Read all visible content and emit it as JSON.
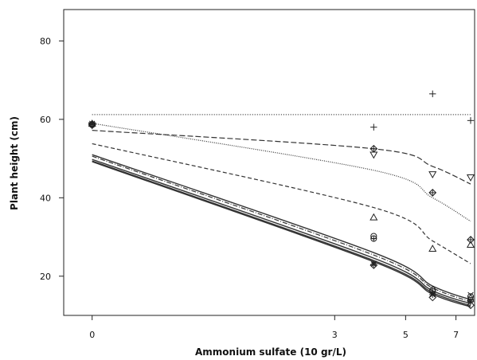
{
  "chart_data": {
    "type": "line",
    "xlabel": "Ammonium sulfate (10 gr/L)",
    "ylabel": "Plant height (cm)",
    "x_scale": "log1p",
    "x_ticks": [
      0,
      3,
      5,
      7
    ],
    "y_ticks": [
      20,
      40,
      60,
      80
    ],
    "xlim": [
      -0.15,
      7.9
    ],
    "ylim": [
      10,
      88
    ],
    "grid": false,
    "series": [
      {
        "marker": "plus",
        "line": "dotted",
        "x": [
          0,
          4,
          6,
          7.7
        ],
        "y": [
          58.8,
          58,
          66.5,
          59.7
        ],
        "fit_y": [
          61.2,
          61.2,
          61.2,
          61.2
        ]
      },
      {
        "marker": "triangle-down",
        "line": "dashed-long",
        "x": [
          0,
          4,
          6,
          7.7
        ],
        "y": [
          58.5,
          51,
          46,
          45.2
        ],
        "fit_y": [
          57.2,
          52.5,
          48,
          43.5
        ]
      },
      {
        "marker": "diamond-cross",
        "line": "dotted-fine",
        "x": [
          0,
          4,
          6,
          7.7
        ],
        "y": [
          58.8,
          52.5,
          41.3,
          29.3
        ],
        "fit_y": [
          59,
          47,
          40,
          34
        ]
      },
      {
        "marker": "triangle-up",
        "line": "dashed",
        "x": [
          0,
          4,
          6,
          7.7
        ],
        "y": [
          58.9,
          35,
          27,
          28
        ],
        "fit_y": [
          53.8,
          37.5,
          29,
          23.2
        ]
      },
      {
        "marker": "circle",
        "line": "solid",
        "x": [
          0,
          4,
          6,
          7.7
        ],
        "y": [
          58.6,
          30.2,
          16.5,
          14.8
        ],
        "fit_y": [
          51,
          26,
          17.5,
          14
        ]
      },
      {
        "marker": "circle-plus",
        "line": "dash-dot",
        "x": [
          0,
          4,
          6,
          7.7
        ],
        "y": [
          58.7,
          29.6,
          16.1,
          13.9
        ],
        "fit_y": [
          50.6,
          25.4,
          17,
          13.5
        ]
      },
      {
        "marker": "x",
        "line": "solid",
        "x": [
          0,
          4,
          6,
          7.7
        ],
        "y": [
          58.9,
          23.2,
          15.5,
          15.2
        ],
        "fit_y": [
          49.8,
          24.6,
          16.3,
          13
        ]
      },
      {
        "marker": "asterisk",
        "line": "solid",
        "x": [
          0,
          4,
          6,
          7.7
        ],
        "y": [
          58.8,
          23,
          15.3,
          13.5
        ],
        "fit_y": [
          49.4,
          24,
          15.8,
          12.5
        ]
      },
      {
        "marker": "diamond",
        "line": "solid",
        "x": [
          0,
          4,
          6,
          7.7
        ],
        "y": [
          58.6,
          22.8,
          14.6,
          12.6
        ],
        "fit_y": [
          49.2,
          23.7,
          15.4,
          12.2
        ]
      }
    ]
  }
}
